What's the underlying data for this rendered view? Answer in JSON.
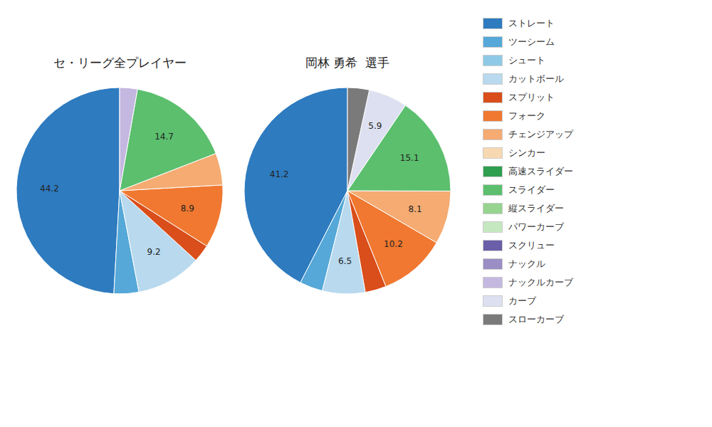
{
  "chart_data": [
    {
      "type": "pie",
      "title": "セ・リーグ全プレイヤー",
      "categories": [
        "ストレート",
        "ツーシーム",
        "シュート",
        "カットボール",
        "スプリット",
        "フォーク",
        "チェンジアップ",
        "シンカー",
        "高速スライダー",
        "スライダー",
        "縦スライダー",
        "パワーカーブ",
        "スクリュー",
        "ナックル",
        "ナックルカーブ",
        "カーブ",
        "スローカーブ"
      ],
      "values": [
        44.2,
        3.5,
        0.0,
        9.2,
        2.5,
        8.9,
        4.5,
        0.0,
        0.0,
        14.7,
        0.0,
        0.0,
        0.0,
        0.0,
        2.5,
        0.0,
        0.0
      ],
      "value_labels": [
        "44.2",
        null,
        null,
        "9.2",
        null,
        "8.9",
        null,
        null,
        null,
        "14.7",
        null,
        null,
        null,
        null,
        null,
        null,
        null
      ],
      "colors": [
        "#2e7bbf",
        "#55a8d8",
        "#8ecae6",
        "#b8d9ee",
        "#d94e1a",
        "#f07830",
        "#f5ab72",
        "#f8d8b0",
        "#2e9e4f",
        "#5bbf6e",
        "#96d48f",
        "#c5e8c0",
        "#6b5ea8",
        "#9b8ec4",
        "#c4b8e0",
        "#dde0f0",
        "#7a7a7a"
      ],
      "data_labels": true
    },
    {
      "type": "pie",
      "title": "岡林 勇希  選手",
      "categories": [
        "ストレート",
        "ツーシーム",
        "シュート",
        "カットボール",
        "スプリット",
        "フォーク",
        "チェンジアップ",
        "シンカー",
        "高速スライダー",
        "スライダー",
        "縦スライダー",
        "パワーカーブ",
        "スクリュー",
        "ナックル",
        "ナックルカーブ",
        "カーブ",
        "スローカーブ"
      ],
      "values": [
        41.2,
        3.5,
        0.0,
        6.5,
        3.2,
        10.2,
        8.1,
        0.0,
        0.0,
        15.1,
        0.0,
        0.0,
        0.0,
        0.0,
        0.0,
        5.9,
        3.3
      ],
      "value_labels": [
        "41.2",
        null,
        null,
        "6.5",
        null,
        "10.2",
        "8.1",
        null,
        null,
        "15.1",
        null,
        null,
        null,
        null,
        null,
        "5.9",
        null
      ],
      "colors": [
        "#2e7bbf",
        "#55a8d8",
        "#8ecae6",
        "#b8d9ee",
        "#d94e1a",
        "#f07830",
        "#f5ab72",
        "#f8d8b0",
        "#2e9e4f",
        "#5bbf6e",
        "#96d48f",
        "#c5e8c0",
        "#6b5ea8",
        "#9b8ec4",
        "#c4b8e0",
        "#dde0f0",
        "#7a7a7a"
      ],
      "data_labels": true,
      "legend": "right"
    }
  ]
}
